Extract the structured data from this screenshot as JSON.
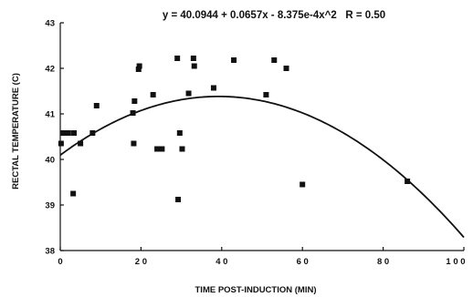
{
  "chart_data": {
    "type": "scatter",
    "annotation": "y = 40.0944 + 0.0657x - 8.375e-4x^2   R = 0.50",
    "xlabel": "TIME POST-INDUCTION (MIN)",
    "ylabel": "RECTAL TEMPERATURE (C)",
    "xlim": [
      0,
      100
    ],
    "ylim": [
      38,
      43
    ],
    "xticks": [
      0,
      20,
      40,
      60,
      80,
      100
    ],
    "xtick_labels": [
      "0",
      "2 0",
      "4 0",
      "6 0",
      "8 0",
      "1 0 0"
    ],
    "yticks": [
      38,
      39,
      40,
      41,
      42,
      43
    ],
    "ytick_labels": [
      "38",
      "39",
      "40",
      "41",
      "42",
      "43"
    ],
    "grid": false,
    "points": [
      {
        "x": 0.2,
        "y": 40.35
      },
      {
        "x": 0.8,
        "y": 40.58
      },
      {
        "x": 2.0,
        "y": 40.58
      },
      {
        "x": 3.2,
        "y": 39.25
      },
      {
        "x": 3.4,
        "y": 40.58
      },
      {
        "x": 5.0,
        "y": 40.35
      },
      {
        "x": 8.0,
        "y": 40.58
      },
      {
        "x": 9.0,
        "y": 41.18
      },
      {
        "x": 18.0,
        "y": 41.02
      },
      {
        "x": 18.2,
        "y": 40.35
      },
      {
        "x": 18.4,
        "y": 41.28
      },
      {
        "x": 19.4,
        "y": 41.98
      },
      {
        "x": 19.6,
        "y": 42.05
      },
      {
        "x": 23.0,
        "y": 41.42
      },
      {
        "x": 24.0,
        "y": 40.23
      },
      {
        "x": 25.2,
        "y": 40.23
      },
      {
        "x": 29.0,
        "y": 42.22
      },
      {
        "x": 29.2,
        "y": 39.12
      },
      {
        "x": 29.6,
        "y": 40.58
      },
      {
        "x": 30.2,
        "y": 40.23
      },
      {
        "x": 31.8,
        "y": 41.45
      },
      {
        "x": 33.0,
        "y": 42.22
      },
      {
        "x": 33.2,
        "y": 42.05
      },
      {
        "x": 38.0,
        "y": 41.57
      },
      {
        "x": 43.0,
        "y": 42.18
      },
      {
        "x": 51.0,
        "y": 41.42
      },
      {
        "x": 53.0,
        "y": 42.18
      },
      {
        "x": 56.0,
        "y": 42.0
      },
      {
        "x": 60.0,
        "y": 39.45
      },
      {
        "x": 86.0,
        "y": 39.52
      }
    ],
    "fit": {
      "type": "quadratic",
      "coefficients": [
        40.0944,
        0.0657,
        -0.0008375
      ]
    }
  }
}
